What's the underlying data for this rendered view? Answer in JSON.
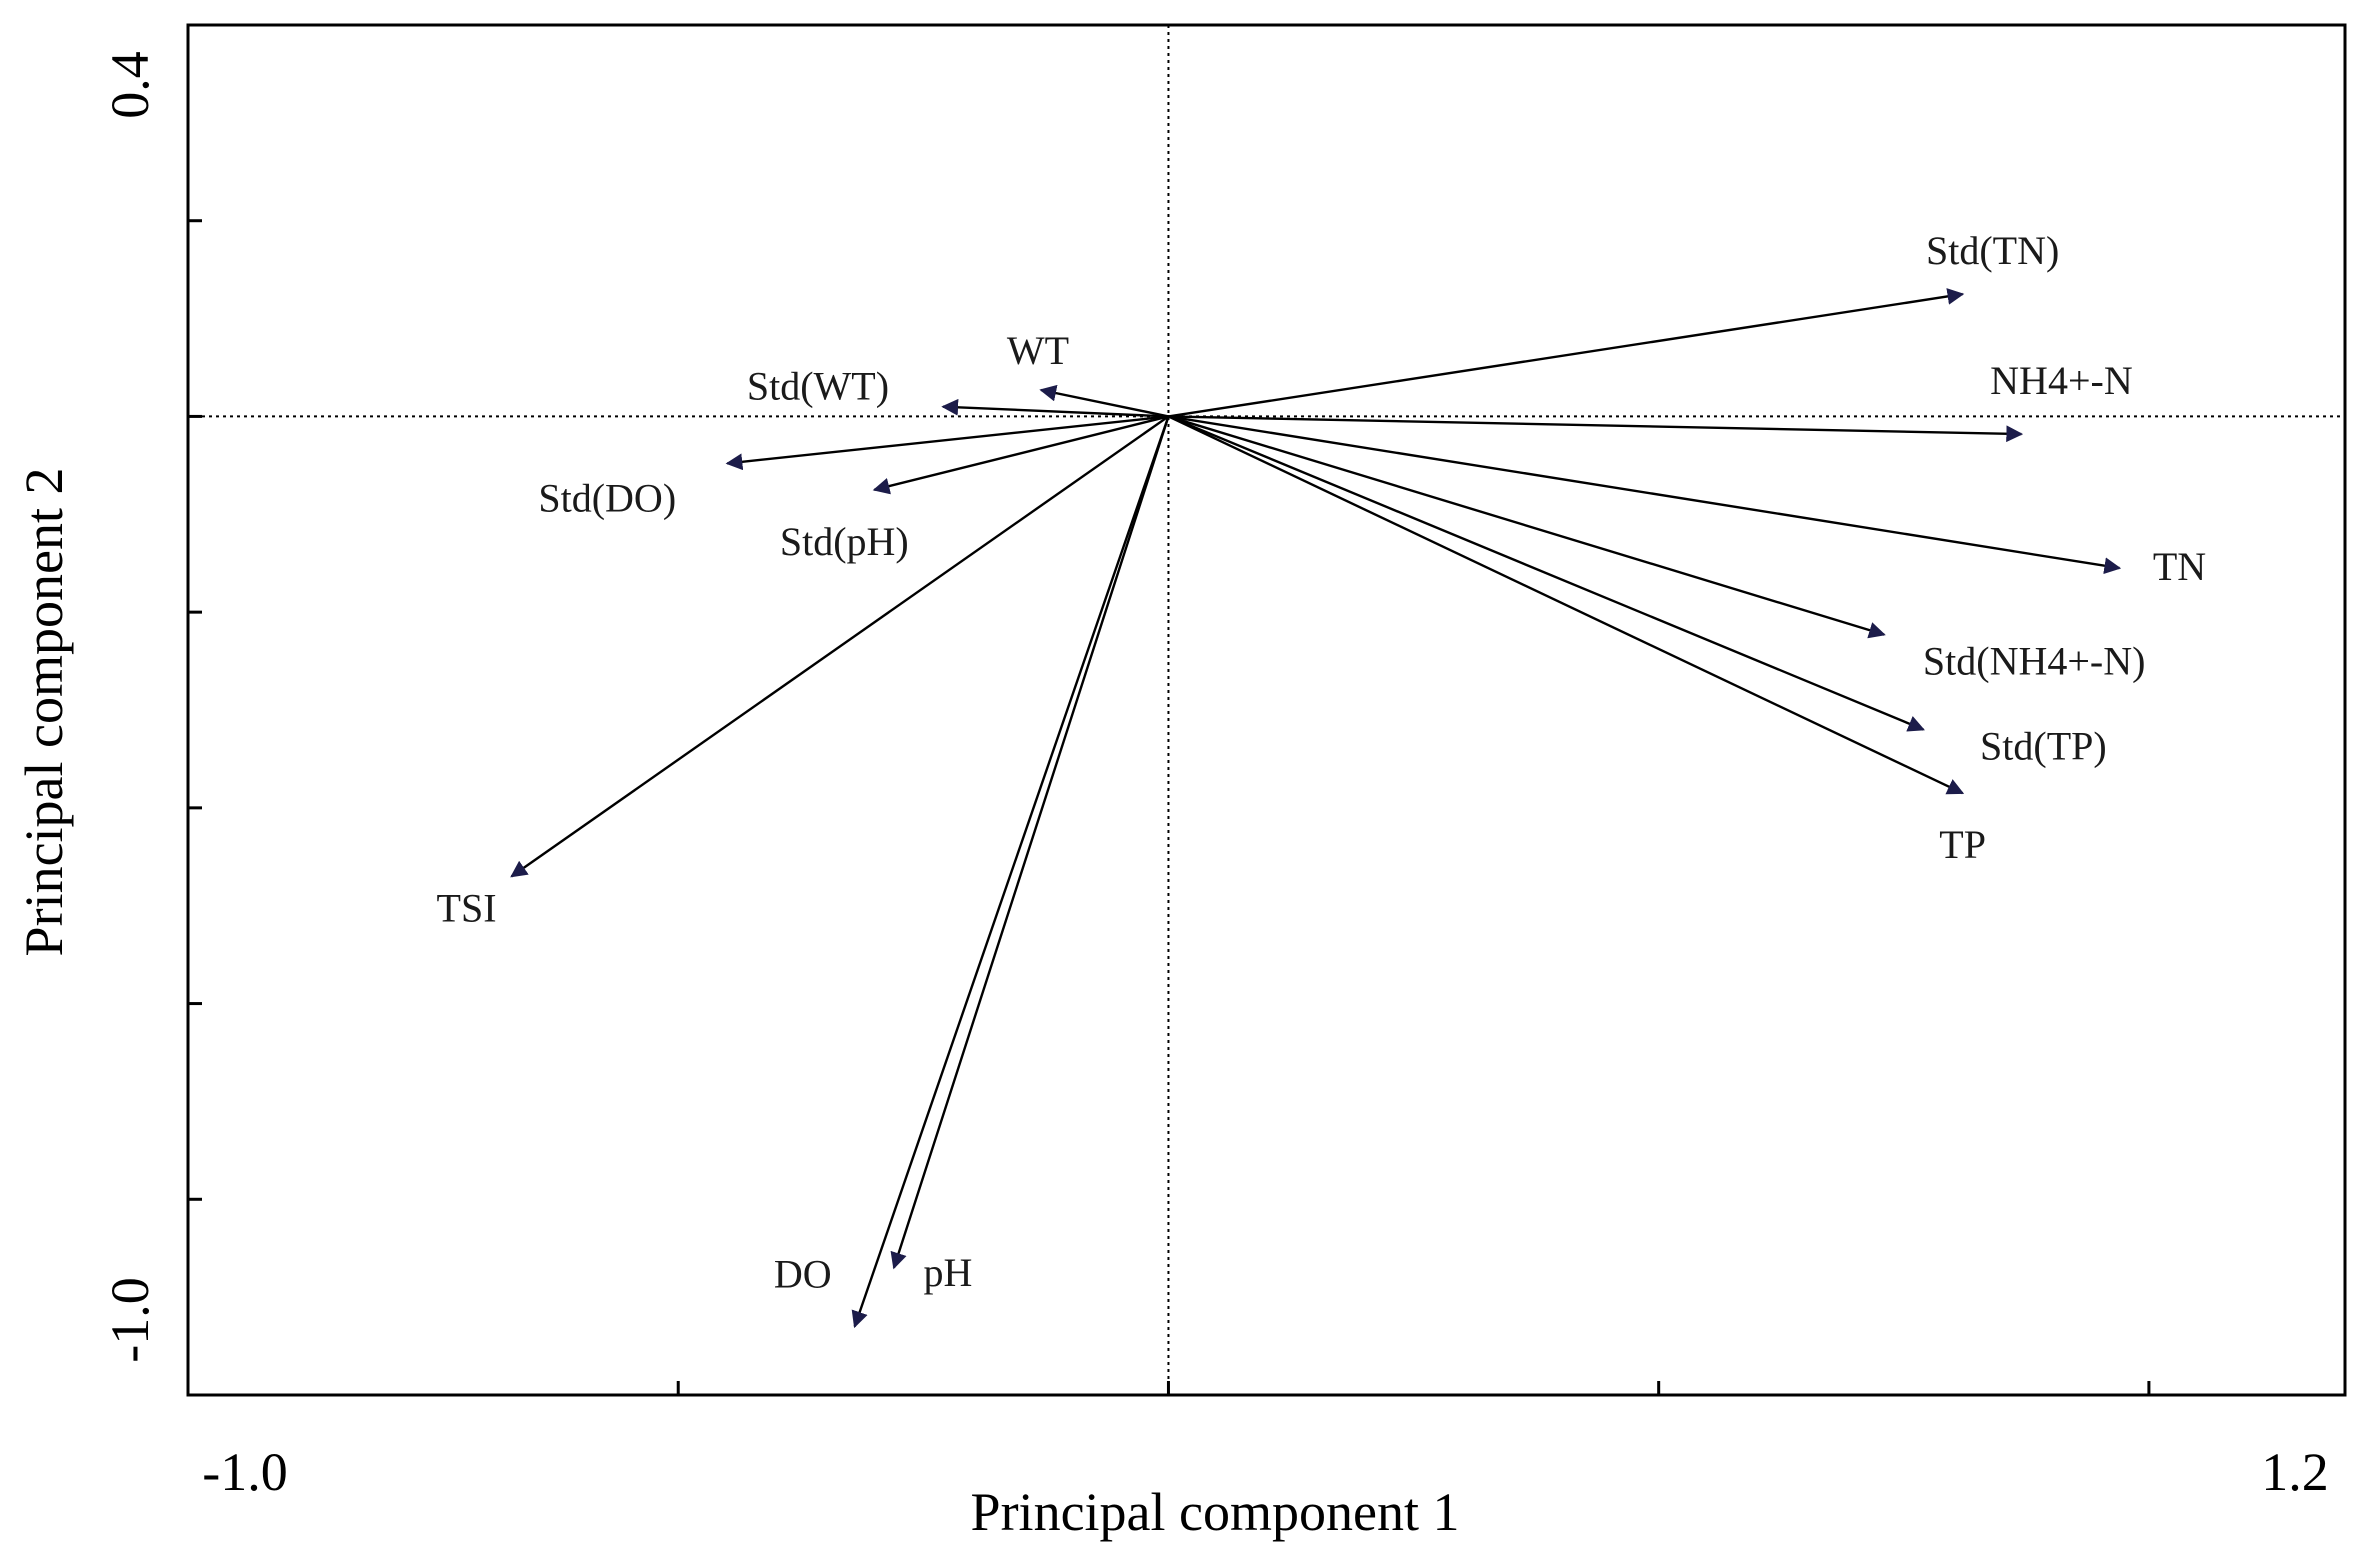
{
  "chart_data": {
    "type": "scatter",
    "subtype": "pca-biplot",
    "title": "",
    "xlabel": "Principal component 1",
    "ylabel": "Principal component 2",
    "xlim": [
      -1.0,
      1.2
    ],
    "ylim": [
      -1.0,
      0.4
    ],
    "xtick_labels": [
      "-1.0",
      "1.2"
    ],
    "ytick_labels": [
      "0.4",
      "-1.0"
    ],
    "x_minor_ticks": [
      -0.5,
      0.0,
      0.5,
      1.0
    ],
    "y_minor_ticks": [
      0.2,
      0.0,
      -0.2,
      -0.4,
      -0.6,
      -0.8
    ],
    "reference_lines": {
      "x": 0,
      "y": 0,
      "style": "dotted"
    },
    "vectors": [
      {
        "name": "Std(TN)",
        "x": 0.81,
        "y": 0.125
      },
      {
        "name": "NH4+-N",
        "x": 0.87,
        "y": -0.018
      },
      {
        "name": "TN",
        "x": 0.97,
        "y": -0.155
      },
      {
        "name": "Std(NH4+-N)",
        "x": 0.73,
        "y": -0.223
      },
      {
        "name": "Std(TP)",
        "x": 0.77,
        "y": -0.32
      },
      {
        "name": "TP",
        "x": 0.81,
        "y": -0.385
      },
      {
        "name": "WT",
        "x": -0.13,
        "y": 0.027
      },
      {
        "name": "Std(WT)",
        "x": -0.23,
        "y": 0.01
      },
      {
        "name": "Std(DO)",
        "x": -0.45,
        "y": -0.048
      },
      {
        "name": "Std(pH)",
        "x": -0.3,
        "y": -0.075
      },
      {
        "name": "TSI",
        "x": -0.67,
        "y": -0.47
      },
      {
        "name": "DO",
        "x": -0.32,
        "y": -0.93
      },
      {
        "name": "pH",
        "x": -0.28,
        "y": -0.87
      }
    ],
    "colors": {
      "arrow": "#000000",
      "arrowhead": "#1c1c4a"
    }
  }
}
